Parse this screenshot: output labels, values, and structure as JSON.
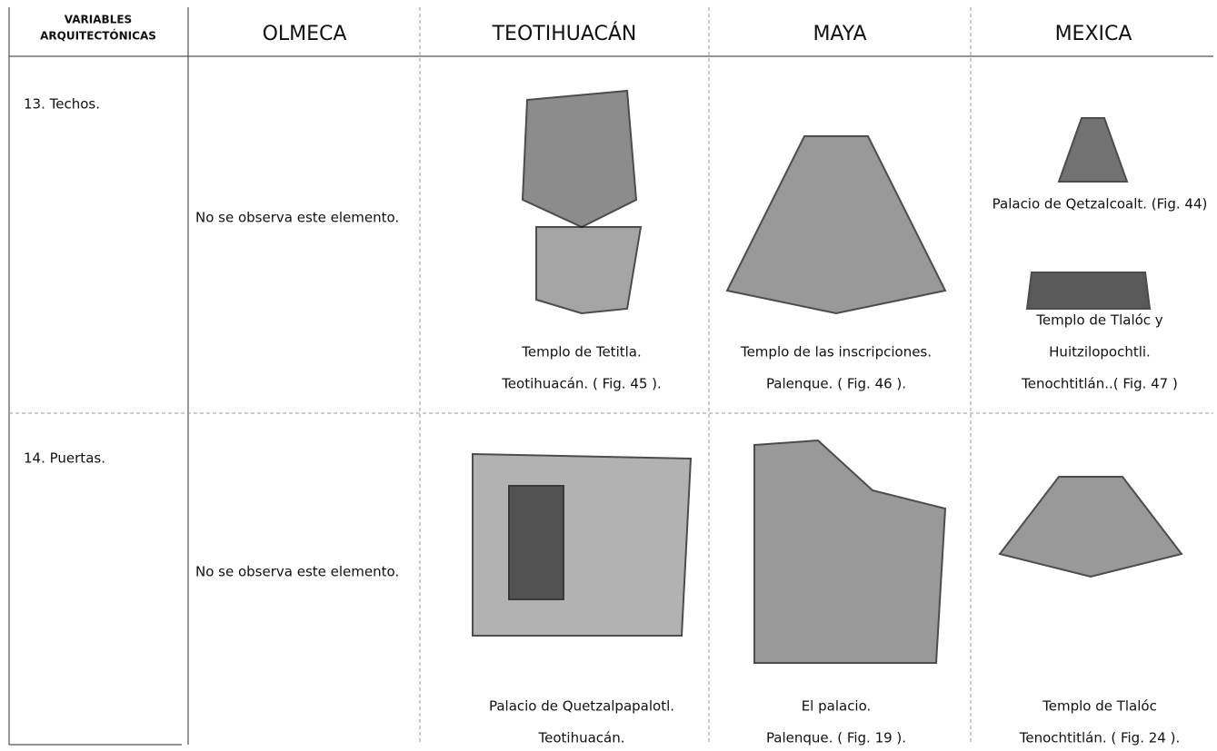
{
  "header": {
    "variables": [
      "VARIABLES",
      "ARQUITECTÓNICAS"
    ],
    "cultures": [
      "OLMECA",
      "TEOTIHUACÁN",
      "MAYA",
      "MEXICA"
    ]
  },
  "rows": [
    {
      "variable": "13. Techos.",
      "olmeca": "No se observa este elemento.",
      "teotihuacan": [
        "Templo de Tetitla.",
        "Teotihuacán. ( Fig. 45 )."
      ],
      "maya": [
        "Templo de las inscripciones.",
        "Palenque. ( Fig. 46 )."
      ],
      "mexica": [
        [
          "Palacio de Qetzalcoalt. (Fig. 44)"
        ],
        [
          "Templo de Tlalóc y",
          "Huitzilopochtli.",
          "Tenochtitlán..( Fig. 47 )"
        ]
      ]
    },
    {
      "variable": "14. Puertas.",
      "olmeca": "No se observa este elemento.",
      "teotihuacan": [
        "Palacio de Quetzalpapalotl.",
        "Teotihuacán."
      ],
      "maya": [
        "El palacio.",
        "Palenque. ( Fig. 19 )."
      ],
      "mexica": [
        [
          "Templo de Tlalóc",
          "Tenochtitlán. ( Fig. 24 )."
        ]
      ]
    }
  ]
}
